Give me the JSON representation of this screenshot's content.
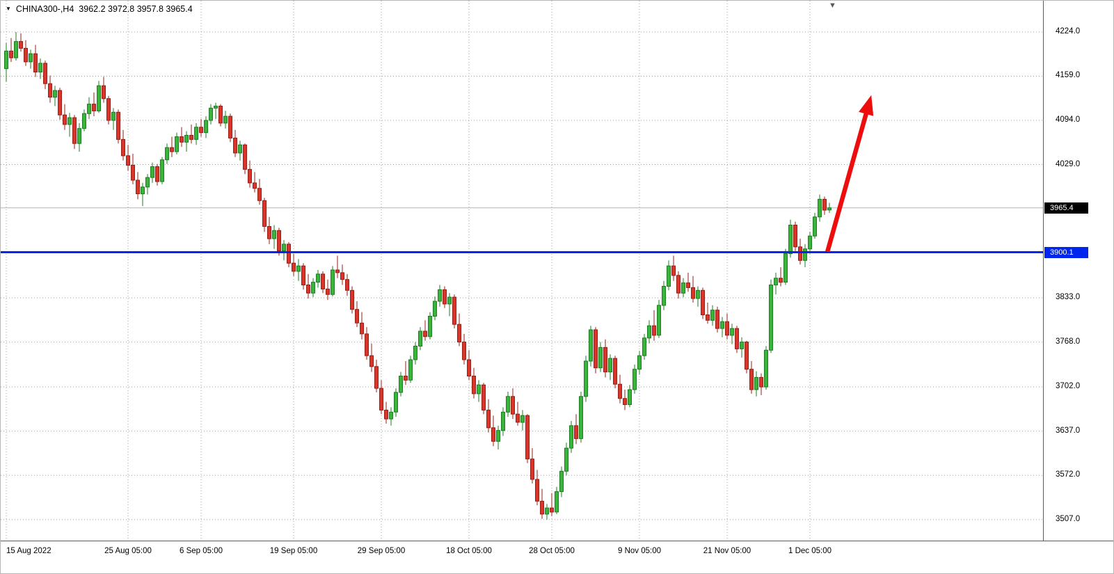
{
  "header": {
    "symbol_title": "CHINA300-,H4",
    "ohlc_readout": "3962.2 3972.8 3957.8 3965.4",
    "symbol_marker_icon": "▼",
    "shift_marker_icon": "▼"
  },
  "chart_data": {
    "type": "candlestick",
    "symbol": "CHINA300-",
    "timeframe": "H4",
    "last_candle_ohlc": {
      "open": 3962.2,
      "high": 3972.8,
      "low": 3957.8,
      "close": 3965.4
    },
    "current_price": 3965.4,
    "current_price_label": "3965.4",
    "hline_price": 3900.1,
    "hline_label": "3900.1",
    "price_top": 4270,
    "price_bottom": 3476,
    "grid": true,
    "y_ticks": [
      4224.0,
      4159.0,
      4094.0,
      4029.0,
      3833.0,
      3768.0,
      3702.0,
      3637.0,
      3572.0,
      3507.0
    ],
    "x_ticks": [
      {
        "label": "15 Aug 2022",
        "index": 0,
        "align": "left"
      },
      {
        "label": "25 Aug 05:00",
        "index": 25
      },
      {
        "label": "6 Sep 05:00",
        "index": 40
      },
      {
        "label": "19 Sep 05:00",
        "index": 59
      },
      {
        "label": "29 Sep 05:00",
        "index": 77
      },
      {
        "label": "18 Oct 05:00",
        "index": 95
      },
      {
        "label": "28 Oct 05:00",
        "index": 112
      },
      {
        "label": "9 Nov 05:00",
        "index": 130
      },
      {
        "label": "21 Nov 05:00",
        "index": 148
      },
      {
        "label": "1 Dec 05:00",
        "index": 165
      }
    ],
    "arrow": {
      "from_index": 168.6,
      "from_price": 3901,
      "to_index": 177.6,
      "to_price": 4131
    },
    "layout": {
      "x_start": 8,
      "candle_spacing": 7,
      "candle_width": 5
    },
    "colors": {
      "background": "#ffffff",
      "text": "#000000",
      "grid": "#a0a0a0",
      "up": "#3bb43b",
      "up_border": "#1d7d22",
      "down": "#da352a",
      "down_border": "#961f16",
      "hline": "#0026ee",
      "hline_badge_bg": "#0026ee",
      "current_line": "#b4b4b4",
      "current_badge_bg": "#000000",
      "arrow": "#ee0d0d"
    },
    "candles": [
      [
        4170,
        4208,
        4151,
        4196
      ],
      [
        4196,
        4215,
        4180,
        4186
      ],
      [
        4186,
        4224,
        4182,
        4210
      ],
      [
        4210,
        4222,
        4195,
        4200
      ],
      [
        4200,
        4212,
        4174,
        4180
      ],
      [
        4180,
        4198,
        4170,
        4192
      ],
      [
        4192,
        4205,
        4158,
        4165
      ],
      [
        4165,
        4185,
        4155,
        4178
      ],
      [
        4178,
        4182,
        4140,
        4148
      ],
      [
        4148,
        4160,
        4120,
        4128
      ],
      [
        4128,
        4145,
        4115,
        4138
      ],
      [
        4138,
        4142,
        4095,
        4102
      ],
      [
        4102,
        4118,
        4080,
        4088
      ],
      [
        4088,
        4105,
        4070,
        4098
      ],
      [
        4098,
        4102,
        4052,
        4060
      ],
      [
        4060,
        4090,
        4048,
        4082
      ],
      [
        4082,
        4110,
        4078,
        4104
      ],
      [
        4104,
        4128,
        4096,
        4118
      ],
      [
        4118,
        4135,
        4100,
        4108
      ],
      [
        4108,
        4152,
        4105,
        4145
      ],
      [
        4145,
        4158,
        4120,
        4126
      ],
      [
        4126,
        4130,
        4088,
        4094
      ],
      [
        4094,
        4112,
        4080,
        4106
      ],
      [
        4106,
        4110,
        4060,
        4066
      ],
      [
        4066,
        4080,
        4035,
        4042
      ],
      [
        4042,
        4058,
        4020,
        4028
      ],
      [
        4028,
        4045,
        4000,
        4006
      ],
      [
        4006,
        4018,
        3978,
        3986
      ],
      [
        3986,
        4002,
        3968,
        3996
      ],
      [
        3996,
        4015,
        3985,
        4010
      ],
      [
        4010,
        4032,
        4002,
        4026
      ],
      [
        4026,
        4030,
        3998,
        4004
      ],
      [
        4004,
        4040,
        4000,
        4036
      ],
      [
        4036,
        4060,
        4030,
        4054
      ],
      [
        4054,
        4070,
        4040,
        4048
      ],
      [
        4048,
        4076,
        4044,
        4070
      ],
      [
        4070,
        4084,
        4055,
        4062
      ],
      [
        4062,
        4078,
        4048,
        4072
      ],
      [
        4072,
        4088,
        4060,
        4066
      ],
      [
        4066,
        4090,
        4058,
        4084
      ],
      [
        4084,
        4096,
        4070,
        4076
      ],
      [
        4076,
        4100,
        4068,
        4094
      ],
      [
        4094,
        4118,
        4088,
        4112
      ],
      [
        4112,
        4120,
        4096,
        4115
      ],
      [
        4115,
        4118,
        4085,
        4090
      ],
      [
        4090,
        4108,
        4082,
        4100
      ],
      [
        4100,
        4104,
        4062,
        4068
      ],
      [
        4068,
        4080,
        4040,
        4046
      ],
      [
        4046,
        4064,
        4035,
        4058
      ],
      [
        4058,
        4060,
        4015,
        4022
      ],
      [
        4022,
        4035,
        3995,
        4002
      ],
      [
        4002,
        4018,
        3988,
        3994
      ],
      [
        3994,
        4008,
        3970,
        3976
      ],
      [
        3976,
        3980,
        3930,
        3938
      ],
      [
        3938,
        3952,
        3912,
        3920
      ],
      [
        3920,
        3940,
        3905,
        3932
      ],
      [
        3932,
        3936,
        3895,
        3902
      ],
      [
        3902,
        3918,
        3888,
        3912
      ],
      [
        3912,
        3915,
        3878,
        3884
      ],
      [
        3884,
        3898,
        3865,
        3872
      ],
      [
        3872,
        3890,
        3858,
        3880
      ],
      [
        3880,
        3884,
        3845,
        3852
      ],
      [
        3852,
        3868,
        3832,
        3840
      ],
      [
        3840,
        3862,
        3834,
        3856
      ],
      [
        3856,
        3874,
        3848,
        3868
      ],
      [
        3868,
        3872,
        3840,
        3846
      ],
      [
        3846,
        3860,
        3830,
        3838
      ],
      [
        3838,
        3880,
        3835,
        3874
      ],
      [
        3874,
        3895,
        3862,
        3870
      ],
      [
        3870,
        3882,
        3852,
        3860
      ],
      [
        3860,
        3868,
        3836,
        3844
      ],
      [
        3844,
        3850,
        3810,
        3816
      ],
      [
        3816,
        3828,
        3790,
        3796
      ],
      [
        3796,
        3812,
        3772,
        3780
      ],
      [
        3780,
        3790,
        3742,
        3748
      ],
      [
        3748,
        3766,
        3724,
        3732
      ],
      [
        3732,
        3742,
        3694,
        3700
      ],
      [
        3700,
        3712,
        3662,
        3668
      ],
      [
        3668,
        3680,
        3648,
        3655
      ],
      [
        3655,
        3672,
        3645,
        3665
      ],
      [
        3665,
        3700,
        3658,
        3694
      ],
      [
        3694,
        3724,
        3688,
        3718
      ],
      [
        3718,
        3740,
        3705,
        3712
      ],
      [
        3712,
        3748,
        3708,
        3742
      ],
      [
        3742,
        3768,
        3735,
        3762
      ],
      [
        3762,
        3790,
        3756,
        3784
      ],
      [
        3784,
        3800,
        3770,
        3776
      ],
      [
        3776,
        3812,
        3772,
        3806
      ],
      [
        3806,
        3835,
        3800,
        3828
      ],
      [
        3828,
        3852,
        3820,
        3845
      ],
      [
        3845,
        3850,
        3818,
        3824
      ],
      [
        3824,
        3840,
        3806,
        3834
      ],
      [
        3834,
        3838,
        3788,
        3794
      ],
      [
        3794,
        3810,
        3762,
        3768
      ],
      [
        3768,
        3780,
        3735,
        3742
      ],
      [
        3742,
        3756,
        3712,
        3718
      ],
      [
        3718,
        3730,
        3685,
        3692
      ],
      [
        3692,
        3712,
        3680,
        3705
      ],
      [
        3705,
        3708,
        3662,
        3668
      ],
      [
        3668,
        3684,
        3635,
        3642
      ],
      [
        3642,
        3660,
        3615,
        3622
      ],
      [
        3622,
        3645,
        3610,
        3638
      ],
      [
        3638,
        3672,
        3630,
        3665
      ],
      [
        3665,
        3695,
        3658,
        3688
      ],
      [
        3688,
        3700,
        3655,
        3662
      ],
      [
        3662,
        3680,
        3645,
        3650
      ],
      [
        3650,
        3668,
        3638,
        3660
      ],
      [
        3660,
        3662,
        3590,
        3596
      ],
      [
        3596,
        3612,
        3560,
        3566
      ],
      [
        3566,
        3580,
        3528,
        3534
      ],
      [
        3534,
        3552,
        3508,
        3515
      ],
      [
        3515,
        3530,
        3507,
        3524
      ],
      [
        3524,
        3546,
        3512,
        3518
      ],
      [
        3518,
        3555,
        3515,
        3548
      ],
      [
        3548,
        3585,
        3540,
        3578
      ],
      [
        3578,
        3620,
        3572,
        3612
      ],
      [
        3612,
        3652,
        3605,
        3645
      ],
      [
        3645,
        3662,
        3618,
        3626
      ],
      [
        3626,
        3695,
        3620,
        3688
      ],
      [
        3688,
        3748,
        3680,
        3740
      ],
      [
        3740,
        3792,
        3732,
        3786
      ],
      [
        3786,
        3790,
        3722,
        3730
      ],
      [
        3730,
        3768,
        3724,
        3760
      ],
      [
        3760,
        3772,
        3716,
        3724
      ],
      [
        3724,
        3750,
        3712,
        3744
      ],
      [
        3744,
        3748,
        3700,
        3706
      ],
      [
        3706,
        3720,
        3678,
        3685
      ],
      [
        3685,
        3698,
        3668,
        3676
      ],
      [
        3676,
        3705,
        3672,
        3698
      ],
      [
        3698,
        3735,
        3692,
        3728
      ],
      [
        3728,
        3755,
        3720,
        3748
      ],
      [
        3748,
        3780,
        3742,
        3774
      ],
      [
        3774,
        3800,
        3766,
        3792
      ],
      [
        3792,
        3815,
        3770,
        3778
      ],
      [
        3778,
        3830,
        3774,
        3822
      ],
      [
        3822,
        3858,
        3815,
        3850
      ],
      [
        3850,
        3888,
        3844,
        3880
      ],
      [
        3880,
        3895,
        3858,
        3866
      ],
      [
        3866,
        3872,
        3832,
        3840
      ],
      [
        3840,
        3862,
        3834,
        3855
      ],
      [
        3855,
        3870,
        3842,
        3848
      ],
      [
        3848,
        3865,
        3826,
        3832
      ],
      [
        3832,
        3850,
        3820,
        3844
      ],
      [
        3844,
        3848,
        3802,
        3808
      ],
      [
        3808,
        3826,
        3795,
        3800
      ],
      [
        3800,
        3822,
        3792,
        3815
      ],
      [
        3815,
        3820,
        3782,
        3788
      ],
      [
        3788,
        3805,
        3775,
        3798
      ],
      [
        3798,
        3810,
        3772,
        3778
      ],
      [
        3778,
        3795,
        3765,
        3788
      ],
      [
        3788,
        3792,
        3752,
        3758
      ],
      [
        3758,
        3775,
        3745,
        3768
      ],
      [
        3768,
        3770,
        3722,
        3728
      ],
      [
        3728,
        3740,
        3692,
        3698
      ],
      [
        3698,
        3725,
        3688,
        3716
      ],
      [
        3716,
        3722,
        3690,
        3702
      ],
      [
        3702,
        3762,
        3698,
        3756
      ],
      [
        3756,
        3860,
        3752,
        3852
      ],
      [
        3852,
        3870,
        3838,
        3862
      ],
      [
        3862,
        3878,
        3850,
        3856
      ],
      [
        3856,
        3905,
        3852,
        3898
      ],
      [
        3898,
        3948,
        3892,
        3940
      ],
      [
        3940,
        3945,
        3902,
        3908
      ],
      [
        3908,
        3920,
        3882,
        3888
      ],
      [
        3888,
        3912,
        3878,
        3905
      ],
      [
        3905,
        3930,
        3898,
        3924
      ],
      [
        3924,
        3958,
        3920,
        3952
      ],
      [
        3952,
        3985,
        3945,
        3978
      ],
      [
        3978,
        3982,
        3955,
        3962
      ],
      [
        3962.2,
        3972.8,
        3957.8,
        3965.4
      ]
    ]
  }
}
